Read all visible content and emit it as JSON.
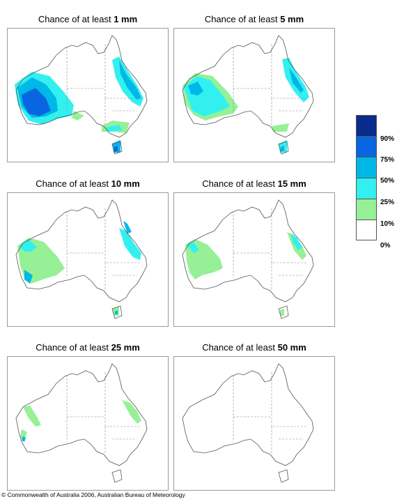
{
  "panels": [
    {
      "prefix": "Chance of at least ",
      "amount": "1 mm"
    },
    {
      "prefix": "Chance of at least ",
      "amount": "5 mm"
    },
    {
      "prefix": "Chance of at least ",
      "amount": "10 mm"
    },
    {
      "prefix": "Chance of at least ",
      "amount": "15 mm"
    },
    {
      "prefix": "Chance of at least ",
      "amount": "25 mm"
    },
    {
      "prefix": "Chance of at least ",
      "amount": "50 mm"
    }
  ],
  "legend": {
    "labels": [
      "90%",
      "75%",
      "50%",
      "25%",
      "10%",
      "0%"
    ],
    "colors": [
      "#0a2a8c",
      "#0a66e0",
      "#00b8e8",
      "#33f0f0",
      "#96f096",
      "#ffffff"
    ]
  },
  "copyright": "© Commonwealth of Australia 2006, Australian Bureau of Meteorology"
}
